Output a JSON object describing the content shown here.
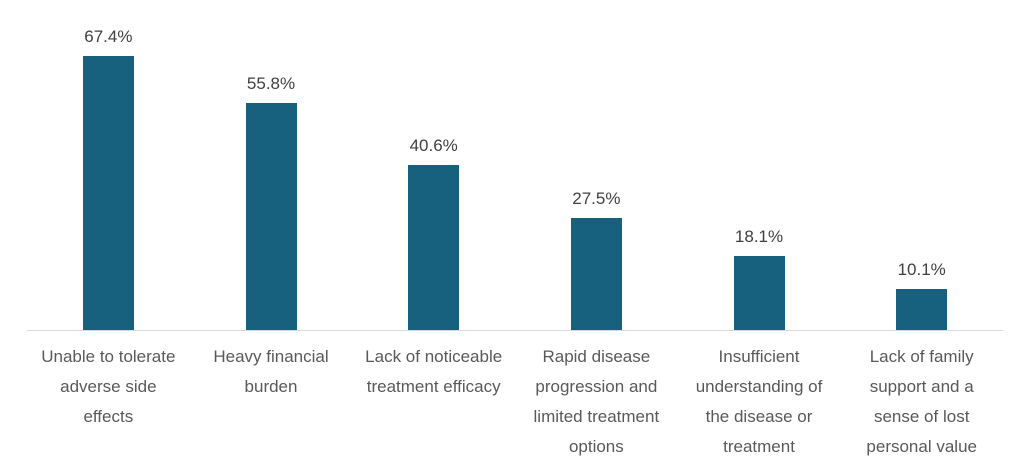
{
  "chart_data": {
    "type": "bar",
    "title": "",
    "categories": [
      "Unable to tolerate adverse side effects",
      "Heavy financial burden",
      "Lack of noticeable treatment efficacy",
      "Rapid disease progression and limited treatment options",
      "Insufficient understanding of the disease or treatment",
      "Lack of family support and a sense of lost personal value"
    ],
    "categories_display": [
      "Unable to tolerate\nadverse side\neffects",
      "Heavy financial\nburden",
      "Lack of noticeable\ntreatment efficacy",
      "Rapid disease\nprogression and\nlimited treatment\noptions",
      "Insufficient\nunderstanding of\nthe disease or\ntreatment",
      "Lack of family\nsupport and a\nsense of lost\npersonal value"
    ],
    "values": [
      67.4,
      55.8,
      40.6,
      27.5,
      18.1,
      10.1
    ],
    "value_labels": [
      "67.4%",
      "55.8%",
      "40.6%",
      "27.5%",
      "18.1%",
      "10.1%"
    ],
    "unit": "%",
    "xlabel": "",
    "ylabel": "",
    "ylim": [
      0,
      75
    ],
    "grid": "off",
    "legend": "none",
    "y_axis": "hidden",
    "data_labels": "above-bars",
    "colors": {
      "bar": "#17607E",
      "axis_line": "#D9D9D9",
      "value_label": "#404040",
      "category_label": "#595959",
      "background": "#FFFFFF"
    }
  }
}
